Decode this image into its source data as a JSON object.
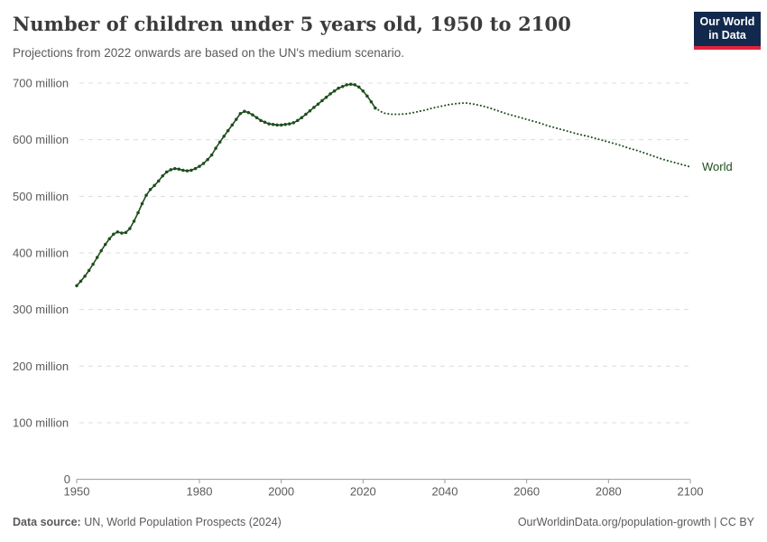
{
  "header": {
    "title": "Number of children under 5 years old, 1950 to 2100",
    "subtitle": "Projections from 2022 onwards are based on the UN's medium scenario.",
    "logo": {
      "line1": "Our World",
      "line2": "in Data",
      "bg_color": "#12294d",
      "accent_color": "#e0233c"
    }
  },
  "footer": {
    "source_label": "Data source:",
    "source_text": " UN, World Population Prospects (2024)",
    "credit": "OurWorldinData.org/population-growth | CC BY"
  },
  "chart_data": {
    "type": "line",
    "title": "Number of children under 5 years old, 1950 to 2100",
    "entity_label": "World",
    "unit": "million",
    "color": "#1d4e1c",
    "grid_color": "#dcdcdc",
    "axis_color": "#9a9a9a",
    "tick_label_color": "#5b5b5b",
    "grid": true,
    "legend_position": "end-of-line",
    "xlim": [
      1950,
      2100
    ],
    "ylim": [
      0,
      700
    ],
    "x_ticks": [
      1950,
      1980,
      2000,
      2020,
      2040,
      2060,
      2080,
      2100
    ],
    "y_ticks": [
      {
        "value": 0,
        "label": "0"
      },
      {
        "value": 100,
        "label": "100 million"
      },
      {
        "value": 200,
        "label": "200 million"
      },
      {
        "value": 300,
        "label": "300 million"
      },
      {
        "value": 400,
        "label": "400 million"
      },
      {
        "value": 500,
        "label": "500 million"
      },
      {
        "value": 600,
        "label": "600 million"
      },
      {
        "value": 700,
        "label": "700 million"
      }
    ],
    "series": [
      {
        "name": "World (estimates)",
        "style": "solid",
        "markers": true,
        "points": [
          [
            1950,
            342
          ],
          [
            1951,
            350
          ],
          [
            1952,
            359
          ],
          [
            1953,
            369
          ],
          [
            1954,
            380
          ],
          [
            1955,
            392
          ],
          [
            1956,
            404
          ],
          [
            1957,
            415
          ],
          [
            1958,
            425
          ],
          [
            1959,
            433
          ],
          [
            1960,
            437
          ],
          [
            1961,
            435
          ],
          [
            1962,
            436
          ],
          [
            1963,
            443
          ],
          [
            1964,
            456
          ],
          [
            1965,
            471
          ],
          [
            1966,
            487
          ],
          [
            1967,
            502
          ],
          [
            1968,
            512
          ],
          [
            1969,
            519
          ],
          [
            1970,
            527
          ],
          [
            1971,
            536
          ],
          [
            1972,
            543
          ],
          [
            1973,
            547
          ],
          [
            1974,
            549
          ],
          [
            1975,
            548
          ],
          [
            1976,
            546
          ],
          [
            1977,
            545
          ],
          [
            1978,
            546
          ],
          [
            1979,
            549
          ],
          [
            1980,
            553
          ],
          [
            1981,
            558
          ],
          [
            1982,
            565
          ],
          [
            1983,
            573
          ],
          [
            1984,
            585
          ],
          [
            1985,
            596
          ],
          [
            1986,
            606
          ],
          [
            1987,
            616
          ],
          [
            1988,
            626
          ],
          [
            1989,
            636
          ],
          [
            1990,
            646
          ],
          [
            1991,
            650
          ],
          [
            1992,
            648
          ],
          [
            1993,
            644
          ],
          [
            1994,
            639
          ],
          [
            1995,
            634
          ],
          [
            1996,
            631
          ],
          [
            1997,
            628
          ],
          [
            1998,
            627
          ],
          [
            1999,
            626
          ],
          [
            2000,
            626
          ],
          [
            2001,
            627
          ],
          [
            2002,
            628
          ],
          [
            2003,
            630
          ],
          [
            2004,
            634
          ],
          [
            2005,
            639
          ],
          [
            2006,
            645
          ],
          [
            2007,
            651
          ],
          [
            2008,
            657
          ],
          [
            2009,
            663
          ],
          [
            2010,
            669
          ],
          [
            2011,
            675
          ],
          [
            2012,
            681
          ],
          [
            2013,
            686
          ],
          [
            2014,
            691
          ],
          [
            2015,
            694
          ],
          [
            2016,
            697
          ],
          [
            2017,
            698
          ],
          [
            2018,
            697
          ],
          [
            2019,
            693
          ],
          [
            2020,
            686
          ],
          [
            2021,
            677
          ],
          [
            2022,
            667
          ],
          [
            2023,
            656
          ]
        ]
      },
      {
        "name": "World (UN medium scenario projection)",
        "style": "dotted",
        "markers": false,
        "points": [
          [
            2023,
            656
          ],
          [
            2025,
            647
          ],
          [
            2027,
            645
          ],
          [
            2029,
            645
          ],
          [
            2031,
            646
          ],
          [
            2033,
            649
          ],
          [
            2035,
            652
          ],
          [
            2037,
            656
          ],
          [
            2039,
            659
          ],
          [
            2041,
            662
          ],
          [
            2043,
            664
          ],
          [
            2045,
            665
          ],
          [
            2047,
            663
          ],
          [
            2049,
            660
          ],
          [
            2051,
            656
          ],
          [
            2053,
            651
          ],
          [
            2055,
            646
          ],
          [
            2057,
            642
          ],
          [
            2059,
            638
          ],
          [
            2061,
            634
          ],
          [
            2063,
            630
          ],
          [
            2065,
            625
          ],
          [
            2067,
            621
          ],
          [
            2069,
            617
          ],
          [
            2071,
            613
          ],
          [
            2073,
            609
          ],
          [
            2075,
            606
          ],
          [
            2077,
            602
          ],
          [
            2079,
            598
          ],
          [
            2081,
            594
          ],
          [
            2083,
            590
          ],
          [
            2085,
            585
          ],
          [
            2087,
            581
          ],
          [
            2089,
            576
          ],
          [
            2091,
            571
          ],
          [
            2093,
            566
          ],
          [
            2095,
            562
          ],
          [
            2097,
            558
          ],
          [
            2099,
            554
          ],
          [
            2100,
            552
          ]
        ]
      }
    ]
  }
}
